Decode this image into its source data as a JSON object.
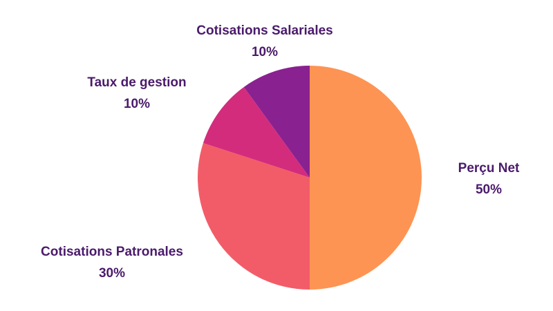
{
  "chart_data": {
    "type": "pie",
    "start_angle_deg": 0,
    "direction": "clockwise",
    "slices": [
      {
        "label": "Perçu Net",
        "value": 50,
        "value_label": "50%",
        "color": "#fd9453"
      },
      {
        "label": "Cotisations Patronales",
        "value": 30,
        "value_label": "30%",
        "color": "#f25c68"
      },
      {
        "label": "Taux de gestion",
        "value": 10,
        "value_label": "10%",
        "color": "#d32c7c"
      },
      {
        "label": "Cotisations Salariales",
        "value": 10,
        "value_label": "10%",
        "color": "#8a2190"
      }
    ],
    "label_color": "#4a1a6b",
    "legend": "none"
  }
}
